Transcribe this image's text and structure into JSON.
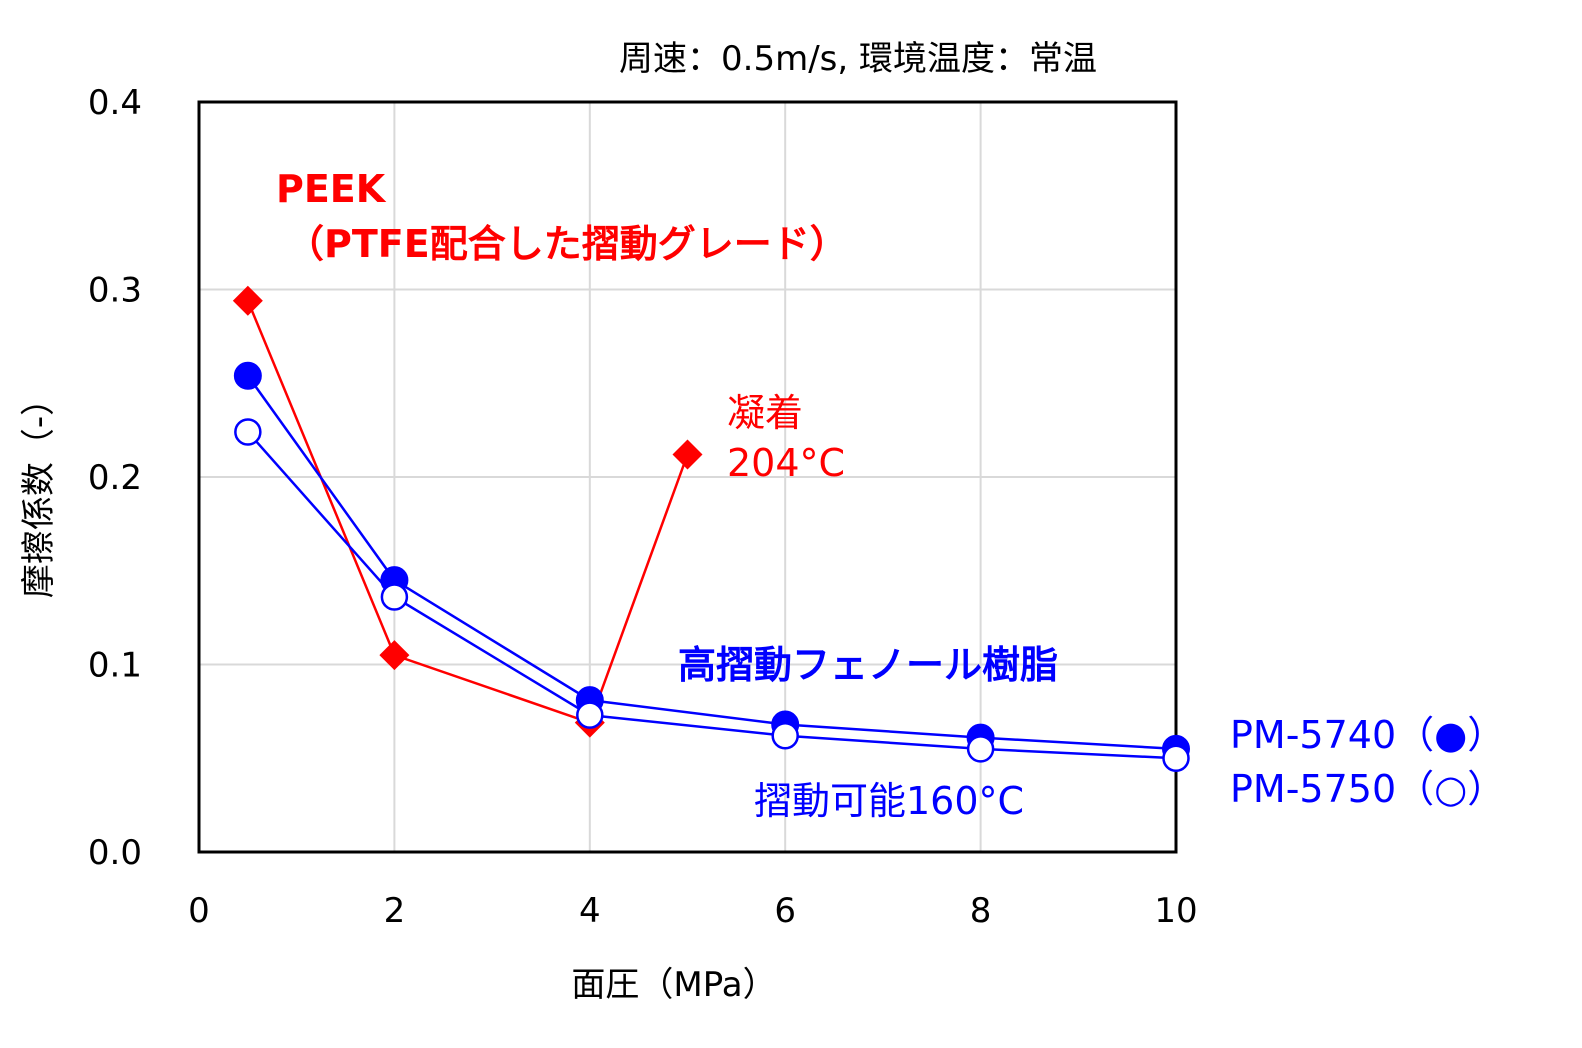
{
  "chart_data": {
    "type": "line",
    "conditions": "周速：0.5m/s, 環境温度：常温",
    "xlabel": "面圧（MPa）",
    "ylabel": "摩擦係数（-）",
    "xlim": [
      0,
      10
    ],
    "ylim": [
      0,
      0.4
    ],
    "x_ticks": [
      "0",
      "2",
      "4",
      "6",
      "8",
      "10"
    ],
    "y_ticks": [
      "0.0",
      "0.1",
      "0.2",
      "0.3",
      "0.4"
    ],
    "grid": true,
    "colors": {
      "peek": "#ff0000",
      "phenolic": "#0000ff"
    },
    "series": [
      {
        "name": "PM-5740（●）",
        "marker": "filled-circle",
        "points": [
          [
            0.5,
            0.254
          ],
          [
            2,
            0.145
          ],
          [
            4,
            0.081
          ],
          [
            6,
            0.068
          ],
          [
            8,
            0.061
          ],
          [
            10,
            0.055
          ]
        ]
      },
      {
        "name": "PM-5750（○）",
        "marker": "open-circle",
        "points": [
          [
            0.5,
            0.224
          ],
          [
            2,
            0.136
          ],
          [
            4,
            0.073
          ],
          [
            6,
            0.062
          ],
          [
            8,
            0.055
          ],
          [
            10,
            0.05
          ]
        ]
      },
      {
        "marker": "diamond",
        "points": [
          [
            0.5,
            0.294
          ],
          [
            2,
            0.105
          ],
          [
            4,
            0.069
          ],
          [
            5,
            0.212
          ]
        ]
      }
    ],
    "annotations": {
      "peek_line1": "PEEK",
      "peek_line2": "（PTFE配合した摺動グレード）",
      "seize_line1": "凝着",
      "seize_line2": "204°C",
      "phenolic": "高摺動フェノール樹脂",
      "slide_limit": "摺動可能160°C"
    }
  }
}
